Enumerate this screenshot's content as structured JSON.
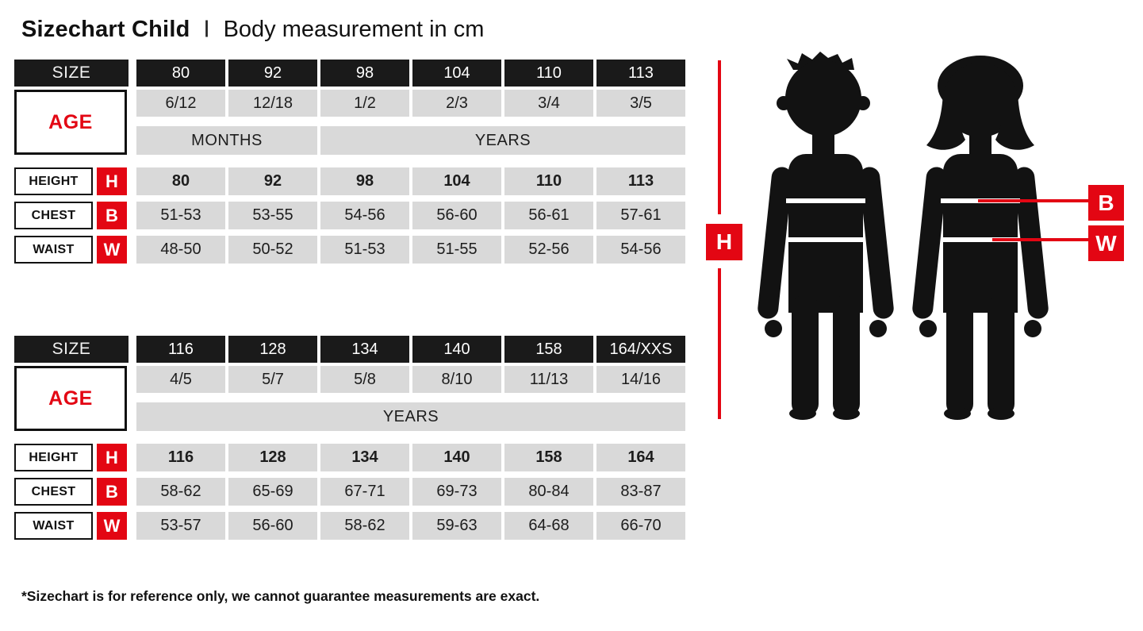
{
  "page": {
    "title": "Sizechart Child",
    "title_separator": "I",
    "subtitle": "Body measurement in cm",
    "footnote": "*Sizechart is for reference only, we cannot guarantee measurements are exact."
  },
  "labels": {
    "size": "SIZE",
    "age": "AGE",
    "height": "HEIGHT",
    "chest": "CHEST",
    "waist": "WAIST",
    "height_short": "H",
    "chest_short": "B",
    "waist_short": "W"
  },
  "colors": {
    "red": "#e30613",
    "header_black": "#1a1a1a",
    "cell_gray": "#d9d9d9"
  },
  "tables": [
    {
      "sizes": [
        "80",
        "92",
        "98",
        "104",
        "110",
        "113"
      ],
      "ages": [
        "6/12",
        "12/18",
        "1/2",
        "2/3",
        "3/4",
        "3/5"
      ],
      "units": [
        {
          "label": "MONTHS",
          "span": 2
        },
        {
          "label": "YEARS",
          "span": 4
        }
      ],
      "height": [
        "80",
        "92",
        "98",
        "104",
        "110",
        "113"
      ],
      "chest": [
        "51-53",
        "53-55",
        "54-56",
        "56-60",
        "56-61",
        "57-61"
      ],
      "waist": [
        "48-50",
        "50-52",
        "51-53",
        "51-55",
        "52-56",
        "54-56"
      ]
    },
    {
      "sizes": [
        "116",
        "128",
        "134",
        "140",
        "158",
        "164/XXS"
      ],
      "ages": [
        "4/5",
        "5/7",
        "5/8",
        "8/10",
        "11/13",
        "14/16"
      ],
      "units": [
        {
          "label": "YEARS",
          "span": 6
        }
      ],
      "height": [
        "116",
        "128",
        "134",
        "140",
        "158",
        "164"
      ],
      "chest": [
        "58-62",
        "65-69",
        "67-71",
        "69-73",
        "80-84",
        "83-87"
      ],
      "waist": [
        "53-57",
        "56-60",
        "58-62",
        "59-63",
        "64-68",
        "66-70"
      ]
    }
  ]
}
